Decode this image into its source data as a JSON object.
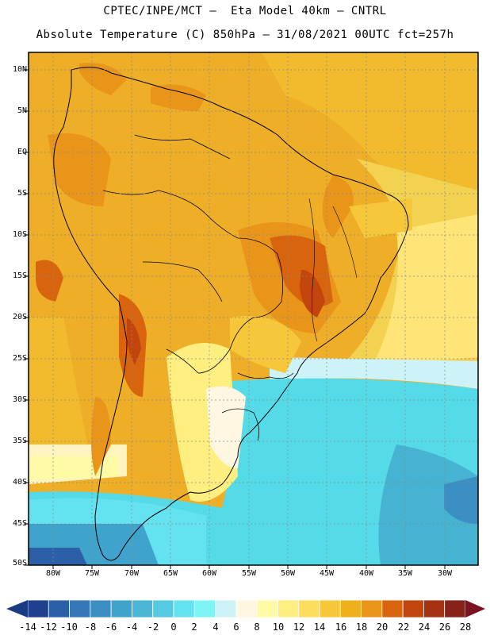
{
  "title": {
    "line1": "CPTEC/INPE/MCT –  Eta Model 40km – CNTRL",
    "line2": "Absolute Temperature (C) 850hPa – 31/08/2021 00UTC fct=257h"
  },
  "map": {
    "lat_labels": [
      "10N",
      "5N",
      "EQ",
      "5S",
      "10S",
      "15S",
      "20S",
      "25S",
      "30S",
      "35S",
      "40S",
      "45S",
      "50S"
    ],
    "lon_labels": [
      "80W",
      "75W",
      "70W",
      "65W",
      "60W",
      "55W",
      "50W",
      "45W",
      "40W",
      "35W",
      "30W"
    ]
  },
  "colorbar": {
    "labels": [
      "-14",
      "-12",
      "-10",
      "-8",
      "-6",
      "-4",
      "-2",
      "0",
      "2",
      "4",
      "6",
      "8",
      "10",
      "12",
      "14",
      "16",
      "18",
      "20",
      "22",
      "24",
      "26",
      "28"
    ],
    "colors": [
      "#1f3f8f",
      "#2b5fa8",
      "#3478b6",
      "#3b8fc2",
      "#40a3cb",
      "#4bb7d6",
      "#55cbe3",
      "#64e2ef",
      "#7ff4f7",
      "#cdf3f8",
      "#fff7e1",
      "#fffaa6",
      "#ffee80",
      "#fbdc5d",
      "#f7c73a",
      "#eeb11c",
      "#e8951a",
      "#d8650d",
      "#c2450b",
      "#a43110",
      "#86221a"
    ],
    "low_color": "#1a3a82",
    "high_color": "#7a1220"
  },
  "colors": {
    "ocean_warm": "#f2bb2e",
    "ocean_mid": "#f4d251",
    "ocean_cool": "#ffe577",
    "ocean_cold": "#55dbe8",
    "land": "#efae28"
  }
}
